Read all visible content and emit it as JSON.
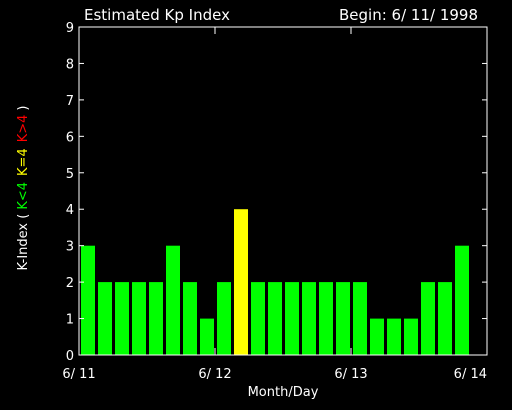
{
  "chart_data": {
    "type": "bar",
    "title": "Estimated Kp Index",
    "begin_label": "Begin: 6/ 11/ 1998",
    "xlabel": "Month/Day",
    "ylabel": {
      "prefix": "K-Index (",
      "low": "K<4",
      "mid": "K=4",
      "high": "K>4",
      "suffix": ")"
    },
    "ylim": [
      0,
      9
    ],
    "yticks": [
      0,
      1,
      2,
      3,
      4,
      5,
      6,
      7,
      8,
      9
    ],
    "xlim": [
      0,
      24
    ],
    "xticks": [
      {
        "value": 0,
        "label": "6/ 11"
      },
      {
        "value": 8,
        "label": "6/ 12"
      },
      {
        "value": 16,
        "label": "6/ 13"
      },
      {
        "value": 24,
        "label": "6/ 14"
      }
    ],
    "values": [
      3,
      2,
      2,
      2,
      2,
      3,
      2,
      1,
      2,
      4,
      2,
      2,
      2,
      2,
      2,
      2,
      2,
      1,
      1,
      1,
      2,
      2,
      3
    ],
    "colors": {
      "background": "#000000",
      "axis": "#ffffff",
      "low": "#00ff00",
      "mid": "#ffff00",
      "high": "#ff0000"
    }
  }
}
